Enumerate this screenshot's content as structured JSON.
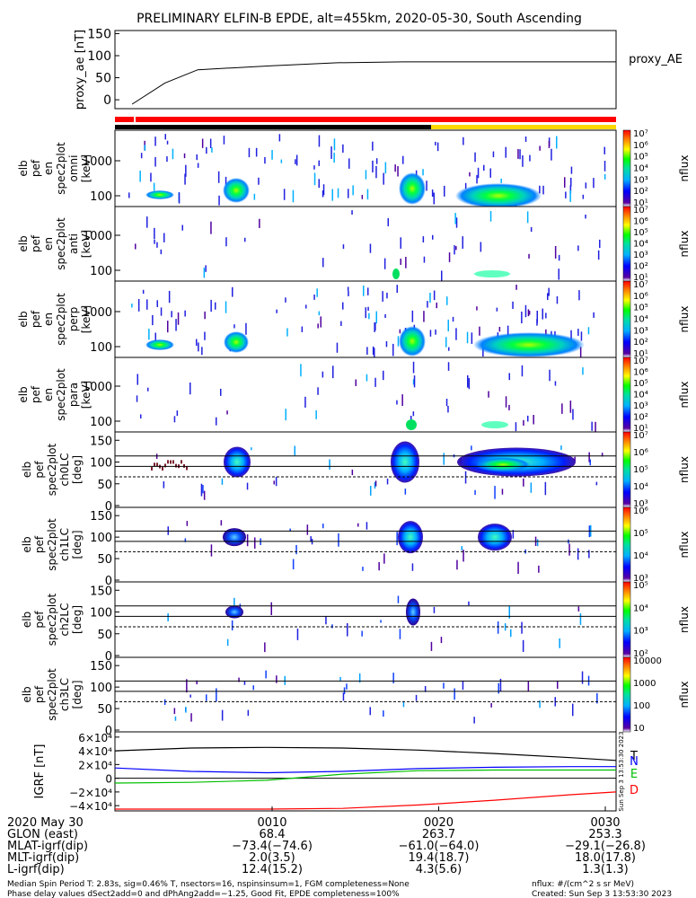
{
  "title": "PRELIMINARY ELFIN-B EPDE, alt=455km, 2020-05-30, South Ascending",
  "chart_data": [
    {
      "type": "line",
      "ylabel": "proxy_ae [nT]",
      "legend": "proxy_AE",
      "ylim": [
        -10,
        155
      ],
      "yticks": [
        "0",
        "50",
        "100",
        "150"
      ],
      "x_minutes": [
        0.5,
        2.5,
        4.5,
        6.5,
        9,
        13,
        17,
        20,
        25,
        30
      ],
      "values": [
        -10,
        38,
        68,
        72,
        77,
        84,
        86,
        86,
        86,
        86
      ]
    },
    {
      "type": "heatmap",
      "ylabel": "elb pef en spec2plot omni [keV]",
      "yticks": [
        "100",
        "1000"
      ],
      "colorbar_label": "nflux",
      "colorbar_ticks": [
        "10¹",
        "10²",
        "10³",
        "10⁴",
        "10⁵",
        "10⁶",
        "10⁷"
      ]
    },
    {
      "type": "heatmap",
      "ylabel": "elb pef en spec2plot anti [keV]",
      "yticks": [
        "100",
        "1000"
      ],
      "colorbar_label": "nflux",
      "colorbar_ticks": [
        "10¹",
        "10²",
        "10³",
        "10⁴",
        "10⁵",
        "10⁶",
        "10⁷"
      ]
    },
    {
      "type": "heatmap",
      "ylabel": "elb pef en spec2plot perp [keV]",
      "yticks": [
        "100",
        "1000"
      ],
      "colorbar_label": "nflux",
      "colorbar_ticks": [
        "10¹",
        "10²",
        "10³",
        "10⁴",
        "10⁵",
        "10⁶",
        "10⁷"
      ]
    },
    {
      "type": "heatmap",
      "ylabel": "elb pef en spec2plot para [keV]",
      "yticks": [
        "100",
        "1000"
      ],
      "colorbar_label": "nflux",
      "colorbar_ticks": [
        "10¹",
        "10²",
        "10³",
        "10⁴",
        "10⁵",
        "10⁶",
        "10⁷"
      ]
    },
    {
      "type": "heatmap",
      "ylabel": "elb pef spec2plot ch0LC [deg]",
      "yticks": [
        "0",
        "50",
        "100",
        "150"
      ],
      "colorbar_label": "nflux",
      "colorbar_ticks": [
        "10³",
        "10⁴",
        "10⁵",
        "10⁶",
        "10⁷"
      ]
    },
    {
      "type": "heatmap",
      "ylabel": "elb pef spec2plot ch1LC [deg]",
      "yticks": [
        "0",
        "50",
        "100",
        "150"
      ],
      "colorbar_label": "nflux",
      "colorbar_ticks": [
        "10³",
        "10⁴",
        "10⁵",
        "10⁶"
      ]
    },
    {
      "type": "heatmap",
      "ylabel": "elb pef spec2plot ch2LC [deg]",
      "yticks": [
        "0",
        "50",
        "100",
        "150"
      ],
      "colorbar_label": "nflux",
      "colorbar_ticks": [
        "10²",
        "10³",
        "10⁴",
        "10⁵"
      ]
    },
    {
      "type": "heatmap",
      "ylabel": "elb pef spec2plot ch3LC [deg]",
      "yticks": [
        "0",
        "50",
        "100",
        "150"
      ],
      "colorbar_label": "nflux",
      "colorbar_ticks": [
        "10",
        "100",
        "1000",
        "10000"
      ]
    },
    {
      "type": "line",
      "ylabel": "IGRF [nT]",
      "ylim": [
        -45000,
        65000
      ],
      "yticks": [
        "−4×10⁴",
        "−2×10⁴",
        "0",
        "2×10⁴",
        "4×10⁴",
        "6×10⁴"
      ],
      "legend": [
        "T",
        "N",
        "E",
        "D"
      ],
      "x_minutes": [
        0,
        5,
        10,
        15,
        20,
        25,
        30,
        33
      ],
      "series": [
        {
          "name": "T",
          "color": "#000000",
          "values": [
            40000,
            44000,
            45000,
            44000,
            41000,
            36000,
            30000,
            26000
          ]
        },
        {
          "name": "N",
          "color": "#0000ff",
          "values": [
            15000,
            10000,
            8000,
            10000,
            14000,
            16000,
            17000,
            17000
          ]
        },
        {
          "name": "E",
          "color": "#00c000",
          "values": [
            -7000,
            -6000,
            -3000,
            6000,
            11000,
            12000,
            12000,
            12000
          ]
        },
        {
          "name": "D",
          "color": "#ff0000",
          "values": [
            -45000,
            -45000,
            -45000,
            -44000,
            -39000,
            -32000,
            -24000,
            -20000
          ]
        }
      ]
    }
  ],
  "strips": {
    "red": "#ff0000",
    "black": "#000000",
    "yellow": "#ffd700"
  },
  "xticks": [
    "0010",
    "0020",
    "0030"
  ],
  "side_stamp": "Sun Sep 3 13:53:30 2023",
  "annotation_rows": [
    {
      "label": "2020 May 30",
      "values": [
        "0010",
        "0020",
        "0030"
      ]
    },
    {
      "label": "GLON (east)",
      "values": [
        "68.4",
        "263.7",
        "253.3"
      ]
    },
    {
      "label": "MLAT-igrf(dip)",
      "values": [
        "−73.4(−74.6)",
        "−61.0(−64.0)",
        "−29.1(−26.8)"
      ]
    },
    {
      "label": "MLT-igrf(dip)",
      "values": [
        "2.0(3.5)",
        "19.4(18.7)",
        "18.0(17.8)"
      ]
    },
    {
      "label": "L-igrf(dip)",
      "values": [
        "12.4(15.2)",
        "4.3(5.6)",
        "1.3(1.3)"
      ]
    }
  ],
  "footer": {
    "left1": "Median Spin Period T: 2.83s, sig=0.46% T, nsectors=16, nspinsinsum=1, FGM completeness=None",
    "left2": "Phase delay values dSect2add=0 and dPhAng2add=−1.25, Good Fit, EPDE completeness=100%",
    "right1": "nflux: #/(cm^2 s sr MeV)",
    "right2": "Created: Sun Sep  3 13:53:30 2023"
  }
}
